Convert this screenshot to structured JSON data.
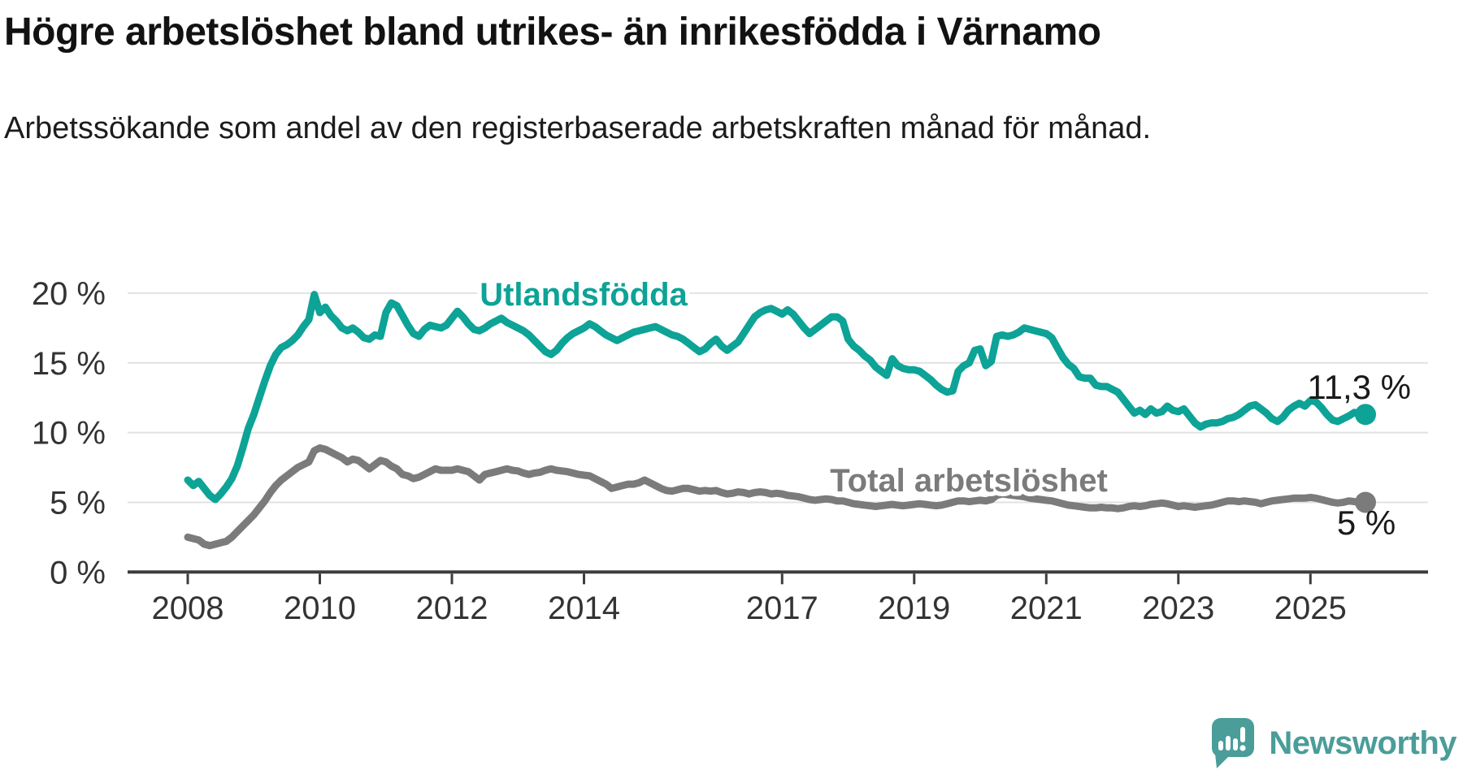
{
  "header": {
    "title": "Högre arbetslöshet bland utrikes- än inrikesfödda i Värnamo",
    "subtitle": "Arbetssökande som andel av den registerbaserade arbetskraften månad för månad."
  },
  "chart_data": {
    "type": "line",
    "x_unit": "month",
    "x_start": "2008-01",
    "x_end": "2025-11",
    "ylim": [
      0,
      21
    ],
    "grid": "horizontal",
    "yticks": [
      {
        "value": 20,
        "label": "20 %"
      },
      {
        "value": 15,
        "label": "15 %"
      },
      {
        "value": 10,
        "label": "10 %"
      },
      {
        "value": 5,
        "label": "5 %"
      },
      {
        "value": 0,
        "label": "0 %"
      }
    ],
    "xticks": [
      {
        "year": 2008,
        "label": "2008"
      },
      {
        "year": 2010,
        "label": "2010"
      },
      {
        "year": 2012,
        "label": "2012"
      },
      {
        "year": 2014,
        "label": "2014"
      },
      {
        "year": 2017,
        "label": "2017"
      },
      {
        "year": 2019,
        "label": "2019"
      },
      {
        "year": 2021,
        "label": "2021"
      },
      {
        "year": 2023,
        "label": "2023"
      },
      {
        "year": 2025,
        "label": "2025"
      }
    ],
    "series": [
      {
        "name": "Utlandsfödda",
        "inline_label": "Utlandsfödda",
        "color": "#0da396",
        "end_label": "11,3 %",
        "end_value": 11.3,
        "values": [
          6.6,
          6.2,
          6.5,
          6.0,
          5.5,
          5.2,
          5.6,
          6.1,
          6.7,
          7.6,
          8.9,
          10.3,
          11.3,
          12.5,
          13.7,
          14.8,
          15.6,
          16.1,
          16.3,
          16.6,
          17.0,
          17.6,
          18.1,
          19.9,
          18.6,
          19.0,
          18.4,
          18.0,
          17.5,
          17.3,
          17.5,
          17.2,
          16.8,
          16.7,
          17.0,
          16.9,
          18.6,
          19.3,
          19.1,
          18.4,
          17.7,
          17.1,
          16.9,
          17.4,
          17.7,
          17.6,
          17.5,
          17.7,
          18.2,
          18.7,
          18.3,
          17.8,
          17.4,
          17.3,
          17.5,
          17.8,
          18.0,
          18.2,
          17.9,
          17.7,
          17.5,
          17.3,
          17.0,
          16.6,
          16.2,
          15.8,
          15.6,
          15.9,
          16.4,
          16.8,
          17.1,
          17.3,
          17.5,
          17.8,
          17.6,
          17.3,
          17.0,
          16.8,
          16.6,
          16.8,
          17.0,
          17.2,
          17.3,
          17.4,
          17.5,
          17.6,
          17.4,
          17.2,
          17.0,
          16.9,
          16.7,
          16.4,
          16.1,
          15.8,
          16.0,
          16.4,
          16.7,
          16.2,
          15.9,
          16.2,
          16.5,
          17.1,
          17.7,
          18.3,
          18.6,
          18.8,
          18.9,
          18.7,
          18.5,
          18.8,
          18.5,
          18.0,
          17.5,
          17.1,
          17.4,
          17.7,
          18.0,
          18.3,
          18.3,
          18.0,
          16.7,
          16.2,
          15.9,
          15.5,
          15.2,
          14.7,
          14.4,
          14.1,
          15.3,
          14.8,
          14.6,
          14.5,
          14.5,
          14.4,
          14.1,
          13.8,
          13.4,
          13.1,
          12.9,
          13.0,
          14.4,
          14.8,
          15.0,
          15.9,
          16.0,
          14.8,
          15.1,
          16.9,
          17.0,
          16.9,
          17.0,
          17.2,
          17.5,
          17.4,
          17.3,
          17.2,
          17.1,
          16.8,
          16.1,
          15.4,
          14.9,
          14.6,
          14.0,
          13.9,
          13.9,
          13.4,
          13.3,
          13.3,
          13.1,
          12.9,
          12.4,
          11.9,
          11.4,
          11.6,
          11.3,
          11.7,
          11.4,
          11.5,
          11.9,
          11.6,
          11.5,
          11.7,
          11.2,
          10.7,
          10.4,
          10.6,
          10.7,
          10.7,
          10.8,
          11.0,
          11.1,
          11.3,
          11.6,
          11.9,
          12.0,
          11.7,
          11.4,
          11.0,
          10.8,
          11.1,
          11.6,
          11.9,
          12.1,
          11.9,
          12.3,
          12.2,
          11.8,
          11.3,
          10.9,
          10.8,
          11.0,
          11.2,
          11.45,
          11.35,
          11.3
        ]
      },
      {
        "name": "Total arbetslöshet",
        "inline_label": "Total arbetslöshet",
        "color": "#7b7b7b",
        "end_label": "5 %",
        "end_value": 5.0,
        "values": [
          2.5,
          2.4,
          2.3,
          2.0,
          1.9,
          2.0,
          2.1,
          2.2,
          2.5,
          2.9,
          3.3,
          3.7,
          4.1,
          4.6,
          5.1,
          5.7,
          6.2,
          6.6,
          6.9,
          7.2,
          7.5,
          7.7,
          7.9,
          8.7,
          8.9,
          8.8,
          8.6,
          8.4,
          8.2,
          7.9,
          8.1,
          8.0,
          7.7,
          7.4,
          7.7,
          8.0,
          7.9,
          7.6,
          7.4,
          7.0,
          6.9,
          6.7,
          6.8,
          7.0,
          7.2,
          7.4,
          7.3,
          7.3,
          7.3,
          7.4,
          7.3,
          7.2,
          6.9,
          6.6,
          7.0,
          7.1,
          7.2,
          7.3,
          7.4,
          7.3,
          7.25,
          7.1,
          7.0,
          7.1,
          7.15,
          7.3,
          7.4,
          7.3,
          7.25,
          7.2,
          7.1,
          7.0,
          6.95,
          6.9,
          6.7,
          6.5,
          6.3,
          6.0,
          6.1,
          6.2,
          6.3,
          6.3,
          6.4,
          6.6,
          6.4,
          6.2,
          6.0,
          5.85,
          5.8,
          5.9,
          6.0,
          6.0,
          5.9,
          5.8,
          5.85,
          5.8,
          5.85,
          5.7,
          5.6,
          5.65,
          5.75,
          5.7,
          5.6,
          5.7,
          5.75,
          5.7,
          5.6,
          5.65,
          5.6,
          5.5,
          5.45,
          5.4,
          5.3,
          5.2,
          5.15,
          5.2,
          5.25,
          5.2,
          5.1,
          5.1,
          5.0,
          4.9,
          4.85,
          4.8,
          4.75,
          4.7,
          4.75,
          4.8,
          4.85,
          4.8,
          4.75,
          4.8,
          4.85,
          4.9,
          4.85,
          4.8,
          4.75,
          4.8,
          4.9,
          5.0,
          5.1,
          5.1,
          5.05,
          5.1,
          5.15,
          5.1,
          5.2,
          5.5,
          5.6,
          5.55,
          5.5,
          5.45,
          5.4,
          5.3,
          5.25,
          5.2,
          5.15,
          5.1,
          5.0,
          4.9,
          4.8,
          4.75,
          4.7,
          4.65,
          4.6,
          4.6,
          4.65,
          4.6,
          4.6,
          4.55,
          4.6,
          4.7,
          4.75,
          4.7,
          4.75,
          4.85,
          4.9,
          4.95,
          4.9,
          4.8,
          4.7,
          4.75,
          4.7,
          4.65,
          4.7,
          4.75,
          4.8,
          4.9,
          5.0,
          5.1,
          5.1,
          5.05,
          5.1,
          5.05,
          5.0,
          4.9,
          5.0,
          5.1,
          5.15,
          5.2,
          5.25,
          5.3,
          5.3,
          5.3,
          5.35,
          5.3,
          5.2,
          5.1,
          5.0,
          4.95,
          5.0,
          5.1,
          5.05,
          5.0,
          5.0
        ]
      }
    ],
    "colors": {
      "grid": "#e2e2e2",
      "axis": "#3d3d3d",
      "tick_text": "#333333",
      "end_label_text": "#1a1a1a"
    }
  },
  "branding": {
    "logo_icon": "newsworthy-chart-bubble-icon",
    "logo_text": "Newsworthy",
    "logo_color": "#4a9d99"
  }
}
